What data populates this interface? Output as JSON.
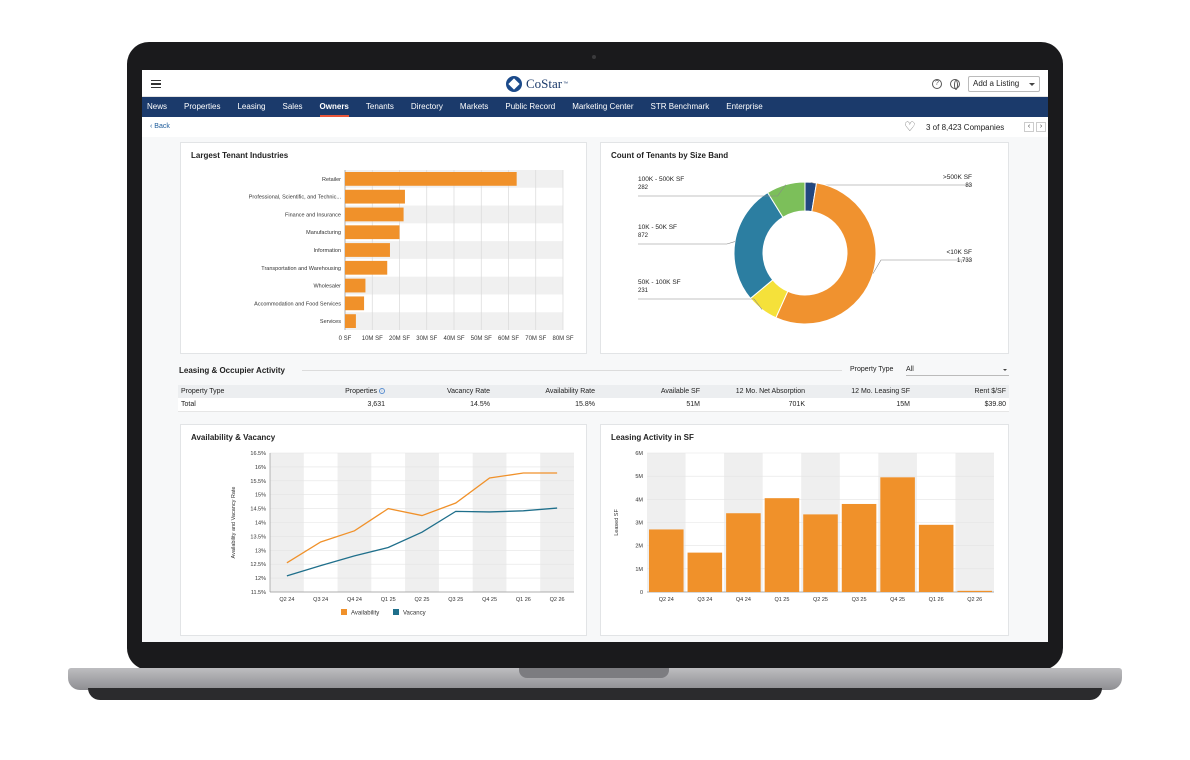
{
  "topbar": {
    "logo_text": "CoStar",
    "logo_tm": "™",
    "add_listing_label": "Add a Listing"
  },
  "nav": {
    "items": [
      "News",
      "Properties",
      "Leasing",
      "Sales",
      "Owners",
      "Tenants",
      "Directory",
      "Markets",
      "Public Record",
      "Marketing Center",
      "STR Benchmark",
      "Enterprise"
    ],
    "active": "Owners"
  },
  "subbar": {
    "back_label": "Back",
    "companies_count": "3 of 8,423 Companies"
  },
  "colors": {
    "orange": "#f0912a",
    "navy": "#1b3a6b",
    "teal": "#2c7ea1",
    "green": "#7cbf5a",
    "yellow": "#f5e13a",
    "dark_blue": "#22477f",
    "accent_red": "#e8553a"
  },
  "tenant_industries": {
    "title": "Largest Tenant Industries",
    "chart_data": {
      "type": "bar",
      "orientation": "horizontal",
      "categories": [
        "Retailer",
        "Professional, Scientific, and Technic...",
        "Finance and Insurance",
        "Manufacturing",
        "Information",
        "Transportation and Warehousing",
        "Wholesaler",
        "Accommodation and Food Services",
        "Services"
      ],
      "values": [
        63,
        22,
        21.5,
        20,
        16.5,
        15.5,
        7.5,
        7,
        4
      ],
      "unit": "M SF",
      "xlim": [
        0,
        80
      ],
      "xticks": [
        "0 SF",
        "10M SF",
        "20M SF",
        "30M SF",
        "40M SF",
        "50M SF",
        "60M SF",
        "70M SF",
        "80M SF"
      ],
      "grid": true
    }
  },
  "tenants_by_size": {
    "title": "Count of Tenants by Size Band",
    "chart_data": {
      "type": "pie",
      "donut": true,
      "slices": [
        {
          "label": ">500K SF",
          "value": 83,
          "display": "83",
          "color": "#22477f"
        },
        {
          "label": "<10K SF",
          "value": 1733,
          "display": "1,733",
          "color": "#f0922f"
        },
        {
          "label": "50K - 100K SF",
          "value": 231,
          "display": "231",
          "color": "#f5e13a"
        },
        {
          "label": "10K - 50K SF",
          "value": 872,
          "display": "872",
          "color": "#2c7ea1"
        },
        {
          "label": "100K - 500K SF",
          "value": 282,
          "display": "282",
          "color": "#7cbf5a"
        }
      ]
    }
  },
  "leasing_activity_section": {
    "title": "Leasing & Occupier Activity",
    "property_type_label": "Property Type",
    "property_type_value": "All",
    "headers": [
      "Property Type",
      "Properties",
      "Vacancy Rate",
      "Availability Rate",
      "Available SF",
      "12 Mo. Net Absorption",
      "12 Mo. Leasing SF",
      "Rent $/SF"
    ],
    "rows": [
      [
        "Total",
        "3,631",
        "14.5%",
        "15.8%",
        "51M",
        "701K",
        "15M",
        "$39.80"
      ]
    ]
  },
  "availability_vacancy": {
    "title": "Availability & Vacancy",
    "chart_data": {
      "type": "line",
      "x": [
        "Q2 24",
        "Q3 24",
        "Q4 24",
        "Q1 25",
        "Q2 25",
        "Q3 25",
        "Q4 25",
        "Q1 26",
        "Q2 26"
      ],
      "xlabels_shown": [
        "Q2 24",
        "Q3 24",
        "Q4 24",
        "Q1 25",
        "Q2 25",
        "Q3 25",
        "Q4 25",
        "Q1 26",
        "Q2 26"
      ],
      "series": [
        {
          "name": "Availability",
          "color": "#f0912a",
          "values": [
            12.55,
            13.3,
            13.7,
            14.5,
            14.25,
            14.7,
            15.6,
            15.78,
            15.78
          ]
        },
        {
          "name": "Vacancy",
          "color": "#1f6f8b",
          "values": [
            12.08,
            12.45,
            12.8,
            13.1,
            13.65,
            14.4,
            14.38,
            14.42,
            14.52
          ]
        }
      ],
      "ylabel": "Availability and Vacancy Rate",
      "ylim": [
        11.5,
        16.5
      ],
      "yticks": [
        "11.5%",
        "12%",
        "12.5%",
        "13%",
        "13.5%",
        "14%",
        "14.5%",
        "15%",
        "15.5%",
        "16%",
        "16.5%"
      ],
      "legend": "bottom"
    }
  },
  "leasing_sf": {
    "title": "Leasing Activity in SF",
    "chart_data": {
      "type": "bar",
      "categories": [
        "Q2 24",
        "Q3 24",
        "Q4 24",
        "Q1 25",
        "Q2 25",
        "Q3 25",
        "Q4 25",
        "Q1 26",
        "Q2 26"
      ],
      "values": [
        2.7,
        1.7,
        3.4,
        4.05,
        3.35,
        3.8,
        4.95,
        2.9,
        0.05
      ],
      "unit": "M",
      "ylabel": "Leased SF",
      "ylim": [
        0,
        6
      ],
      "yticks": [
        "0",
        "1M",
        "2M",
        "3M",
        "4M",
        "5M",
        "6M"
      ]
    }
  }
}
